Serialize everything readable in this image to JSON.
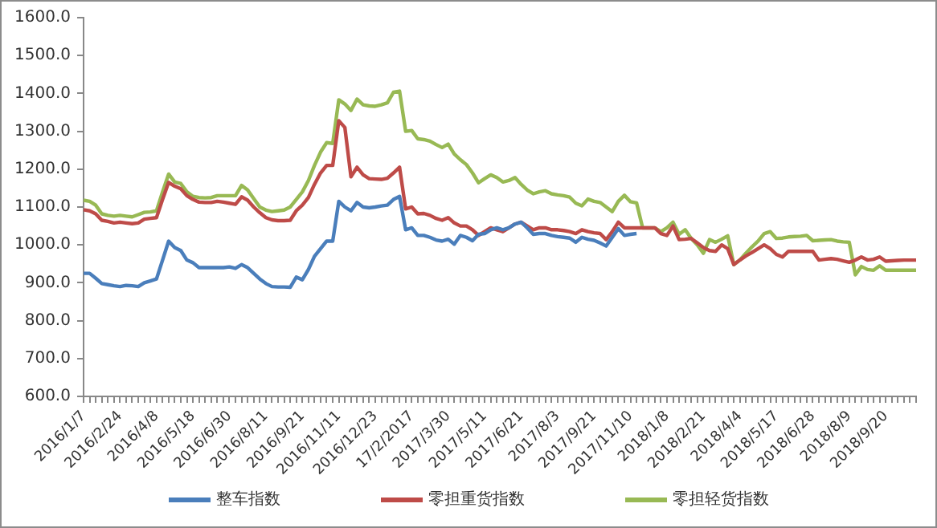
{
  "chart_data": {
    "type": "line",
    "categories": [
      "2016/1/7",
      null,
      null,
      null,
      null,
      null,
      "2016/2/24",
      null,
      null,
      null,
      null,
      null,
      "2016/4/8",
      null,
      null,
      null,
      null,
      null,
      "2016/5/18",
      null,
      null,
      null,
      null,
      null,
      "2016/6/30",
      null,
      null,
      null,
      null,
      null,
      "2016/8/11",
      null,
      null,
      null,
      null,
      null,
      "2016/9/21",
      null,
      null,
      null,
      null,
      null,
      "2016/11/11",
      null,
      null,
      null,
      null,
      null,
      "2016/12/23",
      null,
      null,
      null,
      null,
      null,
      "17/2/2017",
      null,
      null,
      null,
      null,
      null,
      "2017/3/30",
      null,
      null,
      null,
      null,
      null,
      "2017/5/11",
      null,
      null,
      null,
      null,
      null,
      "2017/6/21",
      null,
      null,
      null,
      null,
      null,
      "2017/8/3",
      null,
      null,
      null,
      null,
      null,
      "2017/9/21",
      null,
      null,
      null,
      null,
      null,
      "2017/11/10",
      null,
      null,
      null,
      null,
      null,
      "2018/1/8",
      null,
      null,
      null,
      null,
      null,
      "2018/2/21",
      null,
      null,
      null,
      null,
      null,
      "2018/4/4",
      null,
      null,
      null,
      null,
      null,
      "2018/5/17",
      null,
      null,
      null,
      null,
      null,
      "2018/6/28",
      null,
      null,
      null,
      null,
      null,
      "2018/8/9",
      null,
      null,
      null,
      null,
      null,
      "2018/9/20",
      null,
      null,
      null,
      null,
      null
    ],
    "series": [
      {
        "name": "整车指数",
        "color": "#4a7ebb",
        "values": [
          925,
          925,
          912,
          898,
          895,
          892,
          890,
          893,
          892,
          890,
          900,
          905,
          910,
          960,
          1010,
          993,
          985,
          960,
          953,
          940,
          940,
          940,
          940,
          940,
          942,
          938,
          948,
          940,
          925,
          910,
          898,
          890,
          889,
          889,
          888,
          915,
          908,
          935,
          970,
          990,
          1010,
          1010,
          1115,
          1100,
          1090,
          1112,
          1100,
          1098,
          1100,
          1103,
          1105,
          1120,
          1128,
          1040,
          1045,
          1025,
          1025,
          1020,
          1013,
          1010,
          1015,
          1002,
          1025,
          1020,
          1011,
          1028,
          1030,
          1040,
          1045,
          1040,
          1045,
          1055,
          1060,
          1045,
          1028,
          1030,
          1030,
          1025,
          1022,
          1020,
          1018,
          1007,
          1020,
          1015,
          1012,
          1005,
          997,
          1020,
          1043,
          1025,
          1028,
          1030,
          null,
          null,
          null,
          null,
          null,
          null,
          null,
          null,
          null,
          null,
          null,
          null,
          null,
          null,
          null,
          null,
          null,
          null,
          null,
          null,
          null,
          null,
          null,
          null,
          null,
          null,
          null,
          null,
          null,
          null,
          null,
          null,
          null,
          null,
          null,
          null,
          null,
          null,
          null,
          null,
          null,
          null,
          null,
          null,
          null,
          null
        ]
      },
      {
        "name": "零担重货指数",
        "color": "#be4b48",
        "values": [
          1093,
          1090,
          1082,
          1065,
          1062,
          1058,
          1060,
          1058,
          1056,
          1058,
          1068,
          1070,
          1072,
          1120,
          1165,
          1155,
          1148,
          1130,
          1120,
          1113,
          1112,
          1112,
          1115,
          1113,
          1110,
          1107,
          1127,
          1118,
          1100,
          1085,
          1072,
          1066,
          1064,
          1064,
          1065,
          1090,
          1105,
          1125,
          1160,
          1190,
          1210,
          1210,
          1328,
          1310,
          1180,
          1205,
          1185,
          1175,
          1174,
          1173,
          1176,
          1190,
          1205,
          1095,
          1100,
          1082,
          1083,
          1078,
          1070,
          1065,
          1072,
          1058,
          1050,
          1050,
          1040,
          1025,
          1035,
          1045,
          1040,
          1035,
          1045,
          1055,
          1060,
          1050,
          1040,
          1045,
          1045,
          1040,
          1040,
          1038,
          1035,
          1030,
          1040,
          1035,
          1032,
          1030,
          1014,
          1035,
          1060,
          1045,
          1045,
          1045,
          1045,
          1045,
          1045,
          1030,
          1025,
          1050,
          1014,
          1015,
          1017,
          1005,
          993,
          985,
          983,
          1000,
          990,
          948,
          960,
          971,
          980,
          990,
          1000,
          990,
          975,
          968,
          983,
          983,
          983,
          983,
          983,
          960,
          962,
          964,
          962,
          958,
          954,
          960,
          968,
          960,
          962,
          968,
          957,
          958,
          959,
          960,
          960,
          960
        ]
      },
      {
        "name": "零担轻货指数",
        "color": "#98b954",
        "values": [
          1118,
          1115,
          1105,
          1082,
          1078,
          1076,
          1078,
          1076,
          1074,
          1080,
          1086,
          1087,
          1090,
          1140,
          1187,
          1166,
          1162,
          1140,
          1128,
          1125,
          1124,
          1125,
          1130,
          1130,
          1130,
          1130,
          1157,
          1145,
          1122,
          1100,
          1092,
          1088,
          1090,
          1092,
          1100,
          1120,
          1140,
          1170,
          1210,
          1245,
          1270,
          1268,
          1383,
          1372,
          1355,
          1385,
          1370,
          1367,
          1366,
          1370,
          1375,
          1403,
          1406,
          1300,
          1302,
          1280,
          1278,
          1274,
          1265,
          1257,
          1266,
          1240,
          1225,
          1212,
          1190,
          1164,
          1175,
          1185,
          1178,
          1166,
          1170,
          1178,
          1160,
          1145,
          1135,
          1140,
          1143,
          1135,
          1132,
          1130,
          1126,
          1110,
          1103,
          1121,
          1115,
          1112,
          1100,
          1088,
          1115,
          1131,
          1114,
          1111,
          1045,
          1045,
          1045,
          1035,
          1045,
          1060,
          1028,
          1040,
          1017,
          1000,
          978,
          1014,
          1007,
          1015,
          1024,
          948,
          960,
          978,
          995,
          1010,
          1030,
          1035,
          1017,
          1018,
          1021,
          1022,
          1023,
          1025,
          1011,
          1012,
          1013,
          1014,
          1010,
          1008,
          1007,
          921,
          943,
          935,
          933,
          945,
          933,
          933,
          933,
          933,
          933,
          933
        ]
      }
    ],
    "ylim": [
      600,
      1600
    ],
    "yticks": [
      {
        "value": 600,
        "label": "600.0"
      },
      {
        "value": 700,
        "label": "700.0"
      },
      {
        "value": 800,
        "label": "800.0"
      },
      {
        "value": 900,
        "label": "900.0"
      },
      {
        "value": 1000,
        "label": "1000.0"
      },
      {
        "value": 1100,
        "label": "1100.0"
      },
      {
        "value": 1200,
        "label": "1200.0"
      },
      {
        "value": 1300,
        "label": "1300.0"
      },
      {
        "value": 1400,
        "label": "1400.0"
      },
      {
        "value": 1500,
        "label": "1500.0"
      },
      {
        "value": 1600,
        "label": "1600.0"
      }
    ],
    "grid": false,
    "legend": "bottom",
    "marker": "none",
    "line_style": "solid"
  }
}
